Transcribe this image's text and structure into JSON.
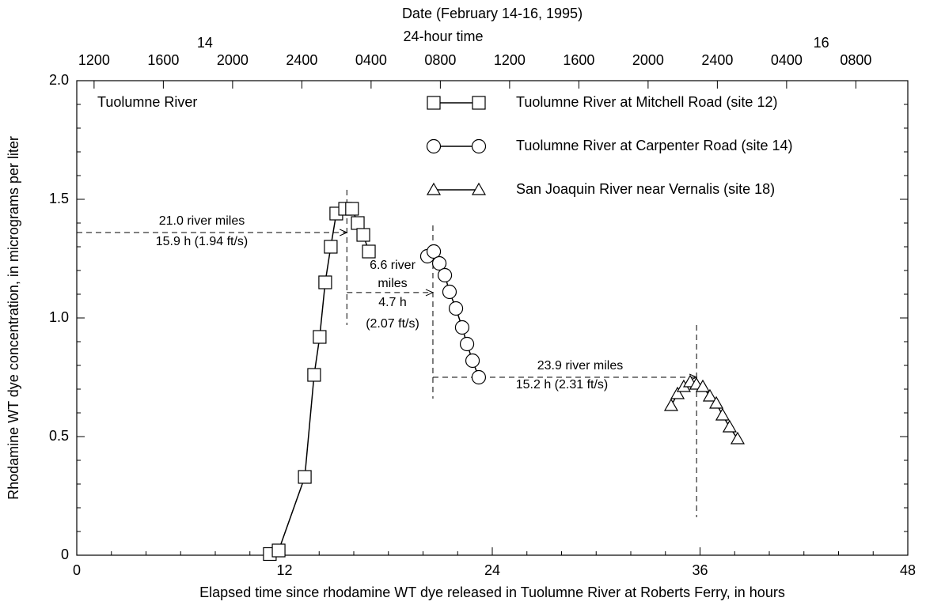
{
  "chart_data": {
    "type": "line",
    "title": "Date (February 14-16, 1995)",
    "top_axis_label": "24-hour time",
    "xlabel": "Elapsed time since rhodamine WT dye released in Tuolumne River at Roberts Ferry, in hours",
    "ylabel": "Rhodamine WT dye concentration, in micrograms per liter",
    "panel_label": "Tuolumne River",
    "xlim": [
      0,
      48
    ],
    "ylim": [
      0,
      2
    ],
    "xticks": [
      0,
      12,
      24,
      36,
      48
    ],
    "yticks": [
      0,
      0.5,
      {
        "value": 1,
        "label": "1.0"
      },
      1.5,
      {
        "value": 2,
        "label": "2.0"
      }
    ],
    "top_time_ticks": [
      {
        "value": 1,
        "label": "1200"
      },
      {
        "value": 5,
        "label": "1600"
      },
      {
        "value": 9,
        "label": "2000"
      },
      {
        "value": 13,
        "label": "2400"
      },
      {
        "value": 17,
        "label": "0400"
      },
      {
        "value": 21,
        "label": "0800"
      },
      {
        "value": 25,
        "label": "1200"
      },
      {
        "value": 29,
        "label": "1600"
      },
      {
        "value": 33,
        "label": "2000"
      },
      {
        "value": 37,
        "label": "2400"
      },
      {
        "value": 41,
        "label": "0400"
      },
      {
        "value": 45,
        "label": "0800"
      }
    ],
    "top_date_ticks": [
      {
        "value": 7.4,
        "label": "14"
      },
      {
        "value": 43,
        "label": "16"
      }
    ],
    "series": [
      {
        "name": "Tuolumne River at Mitchell Road (site 12)",
        "marker": "square",
        "color": "#000000",
        "x": [
          11.15,
          11.66,
          13.17,
          13.71,
          14.03,
          14.35,
          14.67,
          14.99,
          15.5,
          15.9,
          16.23,
          16.55,
          16.87
        ],
        "values": [
          0.005,
          0.02,
          0.33,
          0.76,
          0.92,
          1.15,
          1.3,
          1.44,
          1.46,
          1.46,
          1.4,
          1.35,
          1.28
        ]
      },
      {
        "name": "Tuolumne River at Carpenter Road (site 14)",
        "marker": "circle",
        "color": "#000000",
        "x": [
          20.25,
          20.62,
          20.94,
          21.26,
          21.53,
          21.9,
          22.26,
          22.54,
          22.86,
          23.22
        ],
        "values": [
          1.26,
          1.28,
          1.23,
          1.18,
          1.11,
          1.04,
          0.96,
          0.89,
          0.82,
          0.75
        ]
      },
      {
        "name": "San Joaquin River near Vernalis (site 18)",
        "marker": "triangle",
        "color": "#000000",
        "x": [
          34.33,
          34.7,
          35.06,
          35.43,
          35.79,
          36.16,
          36.57,
          36.94,
          37.3,
          37.71,
          38.17
        ],
        "values": [
          0.63,
          0.68,
          0.71,
          0.73,
          0.72,
          0.71,
          0.67,
          0.64,
          0.59,
          0.54,
          0.49
        ]
      }
    ],
    "annotations": [
      "21.0 river miles",
      "15.9 h (1.94 ft/s)",
      "6.6 river",
      "miles",
      "4.7 h",
      "(2.07 ft/s)",
      "23.9 river miles",
      "15.2 h (2.31 ft/s)"
    ]
  }
}
